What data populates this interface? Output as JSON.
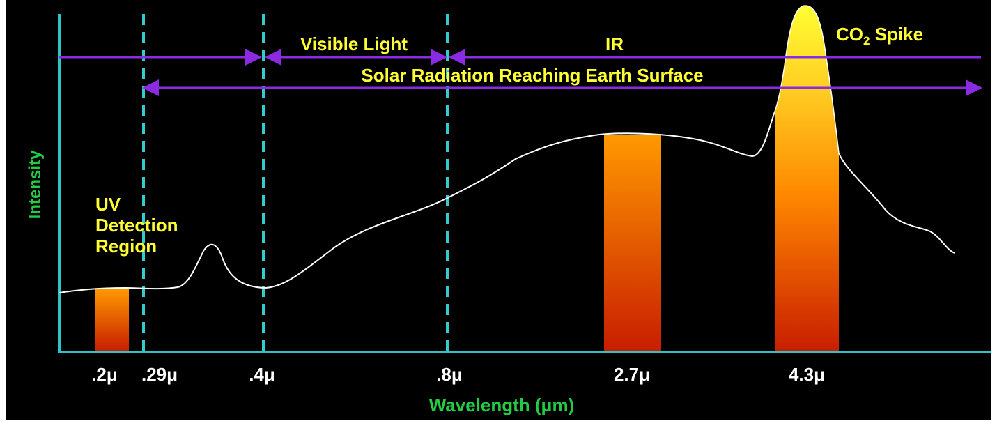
{
  "chart_data": {
    "type": "line",
    "xlabel": "Wavelength (μm)",
    "ylabel": "Intensity",
    "x_ticks": [
      ".2μ",
      ".29μ",
      ".4μ",
      ".8μ",
      "2.7μ",
      "4.3μ"
    ],
    "regions": [
      {
        "name": "UV Detection Region",
        "lines": [
          "UV",
          "Detection",
          "Region"
        ]
      },
      {
        "name": "Visible Light"
      },
      {
        "name": "IR"
      },
      {
        "name": "Solar Radiation Reaching Earth Surface"
      },
      {
        "name": "CO₂ Spike",
        "base": "CO",
        "sub": "2",
        "rest": " Spike"
      }
    ],
    "bands": [
      ".2μ",
      "2.7μ",
      "4.3μ"
    ],
    "grid": false,
    "legend": "none",
    "colors": {
      "background": "#000000",
      "axis": "#2ec4c4",
      "divider": "#33cccc",
      "curve": "#ffffff",
      "label": "#ffff33",
      "axis_title": "#22cc44",
      "tick": "#ffffff",
      "arrow": "#8a2be2",
      "band_top": "#ff9900",
      "band_bottom": "#cc2200",
      "spike_top": "#ffff33"
    }
  }
}
